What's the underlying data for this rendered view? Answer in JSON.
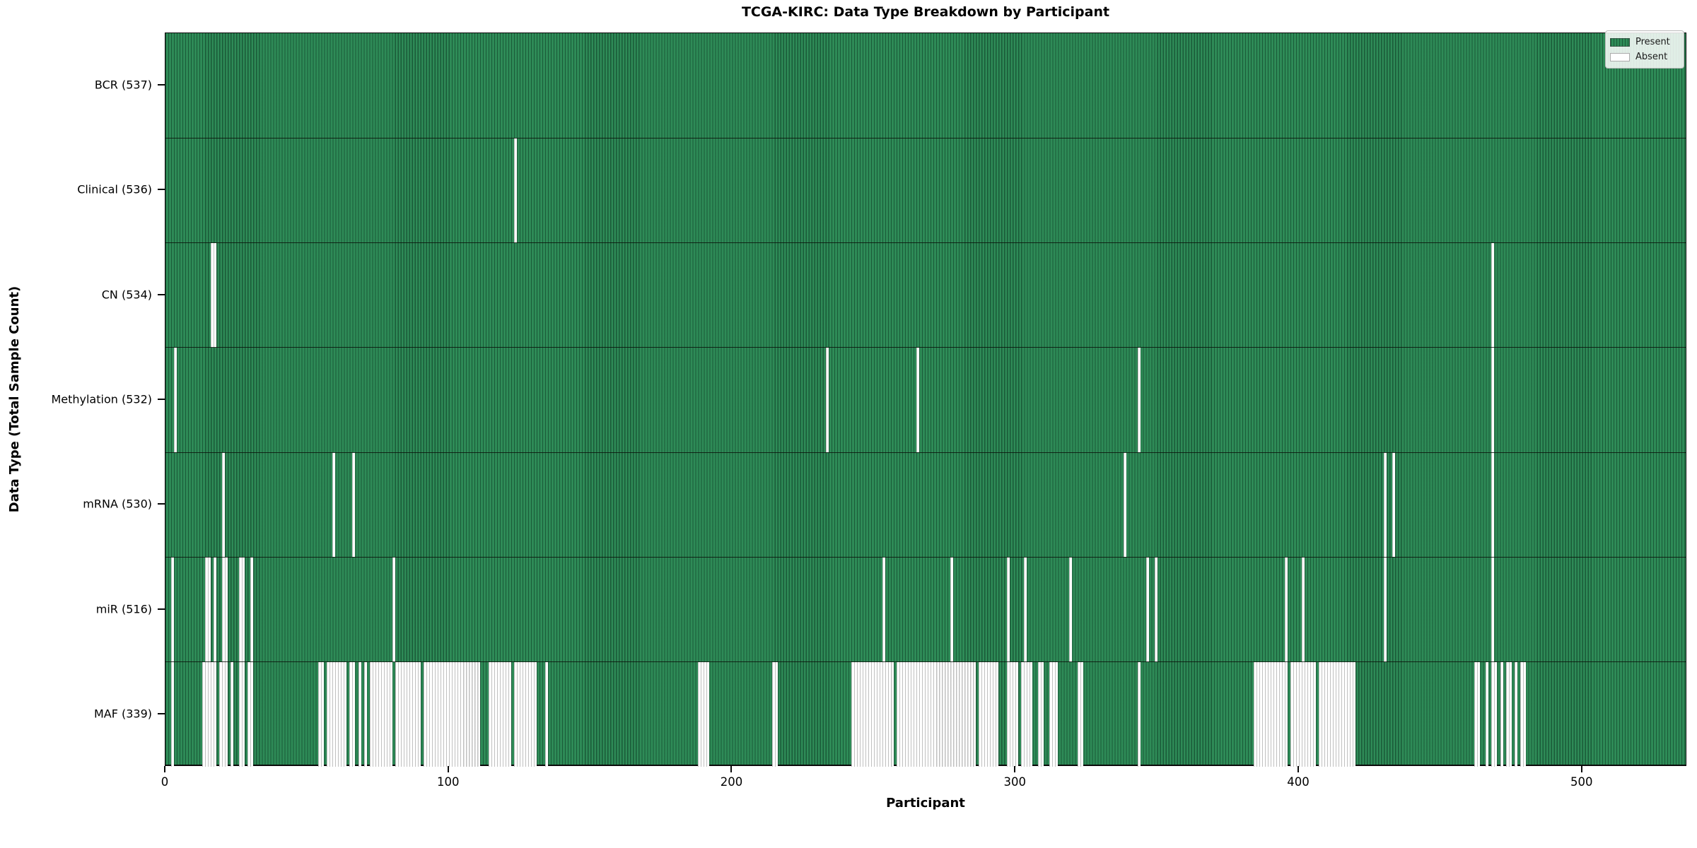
{
  "title": "TCGA-KIRC: Data Type Breakdown by Participant",
  "x_axis_label": "Participant",
  "y_axis_label": "Data Type (Total Sample Count)",
  "legend": {
    "present_label": "Present",
    "absent_label": "Absent"
  },
  "colors": {
    "present_fill": "#2e8b57",
    "present_edge": "rgba(10,50,30,0.55)",
    "absent_fill": "#ffffff",
    "absent_edge": "rgba(140,140,140,0.55)",
    "spine": "#0a0a0a"
  },
  "chart_data": {
    "type": "heatmap",
    "title": "TCGA-KIRC: Data Type Breakdown by Participant",
    "xlabel": "Participant",
    "ylabel": "Data Type (Total Sample Count)",
    "legend_entries": [
      "Present",
      "Absent"
    ],
    "legend_position": "upper right",
    "grid": false,
    "n_participants": 537,
    "x_range": [
      0,
      537
    ],
    "x_ticks": [
      0,
      100,
      200,
      300,
      400,
      500
    ],
    "rows": [
      {
        "name": "BCR",
        "label": "BCR (537)",
        "total_present": 537,
        "absent_ranges": []
      },
      {
        "name": "Clinical",
        "label": "Clinical (536)",
        "total_present": 536,
        "absent_ranges": [
          [
            123,
            123
          ]
        ]
      },
      {
        "name": "CN",
        "label": "CN (534)",
        "total_present": 534,
        "absent_ranges": [
          [
            16,
            17
          ],
          [
            468,
            468
          ]
        ]
      },
      {
        "name": "Methylation",
        "label": "Methylation (532)",
        "total_present": 532,
        "absent_ranges": [
          [
            3,
            3
          ],
          [
            233,
            233
          ],
          [
            265,
            265
          ],
          [
            343,
            343
          ],
          [
            468,
            468
          ]
        ]
      },
      {
        "name": "mRNA",
        "label": "mRNA (530)",
        "total_present": 530,
        "absent_ranges": [
          [
            20,
            20
          ],
          [
            59,
            59
          ],
          [
            66,
            66
          ],
          [
            338,
            338
          ],
          [
            430,
            430
          ],
          [
            433,
            433
          ],
          [
            468,
            468
          ]
        ]
      },
      {
        "name": "miR",
        "label": "miR (516)",
        "total_present": 516,
        "absent_ranges": [
          [
            2,
            2
          ],
          [
            14,
            15
          ],
          [
            17,
            17
          ],
          [
            20,
            21
          ],
          [
            26,
            27
          ],
          [
            30,
            30
          ],
          [
            80,
            80
          ],
          [
            253,
            253
          ],
          [
            277,
            277
          ],
          [
            297,
            297
          ],
          [
            303,
            303
          ],
          [
            319,
            319
          ],
          [
            346,
            346
          ],
          [
            349,
            349
          ],
          [
            395,
            395
          ],
          [
            401,
            401
          ],
          [
            430,
            430
          ],
          [
            468,
            468
          ]
        ]
      },
      {
        "name": "MAF",
        "label": "MAF (339)",
        "total_present": 339,
        "absent_ranges": [
          [
            2,
            2
          ],
          [
            13,
            17
          ],
          [
            19,
            21
          ],
          [
            23,
            23
          ],
          [
            26,
            27
          ],
          [
            29,
            30
          ],
          [
            54,
            55
          ],
          [
            57,
            63
          ],
          [
            65,
            66
          ],
          [
            68,
            68
          ],
          [
            70,
            70
          ],
          [
            72,
            79
          ],
          [
            81,
            89
          ],
          [
            91,
            110
          ],
          [
            114,
            121
          ],
          [
            123,
            130
          ],
          [
            134,
            134
          ],
          [
            188,
            191
          ],
          [
            214,
            215
          ],
          [
            242,
            256
          ],
          [
            258,
            285
          ],
          [
            287,
            293
          ],
          [
            297,
            300
          ],
          [
            302,
            305
          ],
          [
            308,
            309
          ],
          [
            312,
            314
          ],
          [
            322,
            323
          ],
          [
            343,
            343
          ],
          [
            384,
            395
          ],
          [
            397,
            405
          ],
          [
            407,
            419
          ],
          [
            462,
            463
          ],
          [
            466,
            466
          ],
          [
            468,
            469
          ],
          [
            471,
            471
          ],
          [
            473,
            474
          ],
          [
            476,
            476
          ],
          [
            478,
            479
          ]
        ]
      }
    ]
  }
}
